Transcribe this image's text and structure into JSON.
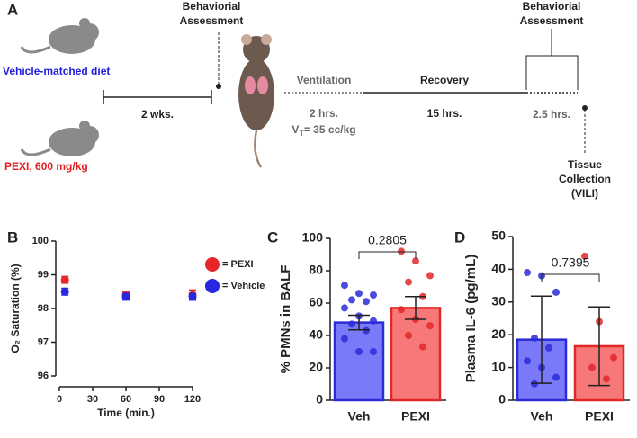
{
  "diagram": {
    "panel": "A",
    "assessment_1": [
      "Behaviorial",
      "Assessment"
    ],
    "vehicle_diet": "Vehicle-matched diet",
    "duration_diet": "2 wks.",
    "pexi_diet": "PEXI, 600 mg/kg",
    "ventilation": "Ventilation",
    "duration_ventilation": "2 hrs.",
    "tidal_volume": {
      "symbol": "V",
      "subscript": "T",
      "text": "= 35 cc/kg"
    },
    "recovery": "Recovery",
    "duration_recovery": "15 hrs.",
    "assessment_2": [
      "Behaviorial",
      "Assessment"
    ],
    "duration_assessment": "2.5 hrs.",
    "tissue": [
      "Tissue",
      "Collection",
      "(VILI)"
    ]
  },
  "chart_data": [
    {
      "type": "scatter",
      "panel": "B",
      "x_label": "Time (min.)",
      "y_label": "O₂ Saturation (%)",
      "x": [
        5,
        60,
        120
      ],
      "xlim": [
        0,
        120
      ],
      "xticks": [
        0,
        30,
        60,
        90,
        120
      ],
      "ylim": [
        96,
        100
      ],
      "yticks": [
        96,
        97,
        98,
        99,
        100
      ],
      "series": [
        {
          "name": "= PEXI",
          "color": "#e8262a",
          "values": [
            98.85,
            98.4,
            98.4
          ],
          "errors": [
            0.1,
            0.1,
            0.15
          ]
        },
        {
          "name": "= Vehicle",
          "color": "#2727e0",
          "values": [
            98.5,
            98.35,
            98.35
          ],
          "errors": [
            0.1,
            0.1,
            0.1
          ]
        }
      ]
    },
    {
      "type": "bar",
      "panel": "C",
      "y_label": "% PMNs in BALF",
      "annotation": "0.2805",
      "categories": [
        "Veh",
        "PEXI"
      ],
      "values": [
        48,
        57
      ],
      "errors": [
        4.5,
        7
      ],
      "colors": [
        "#7a7af8",
        "#f77878"
      ],
      "edge_colors": [
        "#2b2bd8",
        "#e02828"
      ],
      "points": [
        [
          71,
          66,
          65,
          62,
          61,
          57,
          52,
          49,
          47,
          43,
          38,
          30,
          30
        ],
        [
          92,
          86,
          77,
          73,
          64,
          56,
          50,
          46,
          40,
          33
        ]
      ],
      "ylim": [
        0,
        100
      ],
      "yticks": [
        0,
        20,
        40,
        60,
        80,
        100
      ]
    },
    {
      "type": "bar",
      "panel": "D",
      "y_label": "Plasma IL-6 (pg/mL)",
      "annotation": "0.7395",
      "categories": [
        "Veh",
        "PEXI"
      ],
      "values": [
        18.5,
        16.5
      ],
      "errors": [
        13.3,
        12
      ],
      "colors": [
        "#7a7af8",
        "#f77878"
      ],
      "edge_colors": [
        "#2b2bd8",
        "#e02828"
      ],
      "points": [
        [
          39,
          38,
          33,
          19,
          16,
          12,
          10,
          7,
          5
        ],
        [
          44,
          24,
          13,
          10,
          6.5
        ]
      ],
      "ylim": [
        0,
        50
      ],
      "yticks": [
        0,
        10,
        20,
        30,
        40,
        50
      ]
    }
  ]
}
